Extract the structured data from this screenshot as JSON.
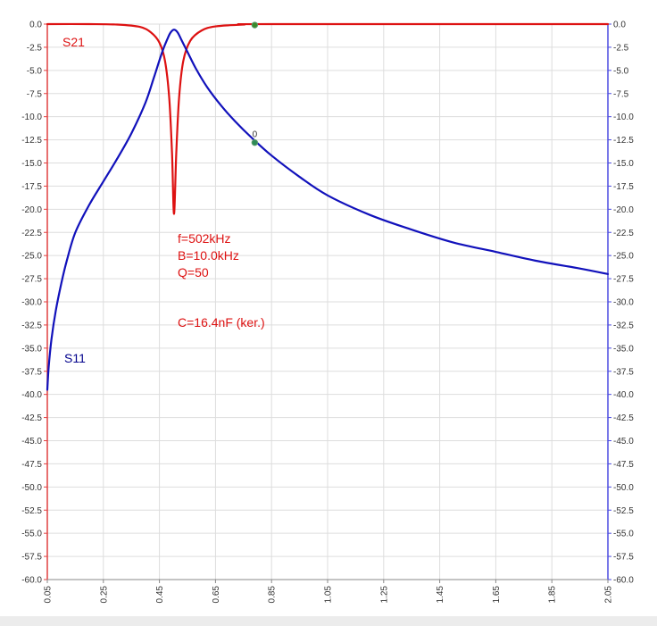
{
  "chart_data": {
    "type": "line",
    "xlim": [
      0.05,
      2.05
    ],
    "ylim_left": [
      -60,
      0
    ],
    "ylim_right": [
      -60,
      0
    ],
    "x_ticks": [
      "0.05",
      "0.25",
      "0.45",
      "0.65",
      "0.85",
      "1.05",
      "1.25",
      "1.45",
      "1.65",
      "1.85",
      "2.05"
    ],
    "y_ticks": [
      "0.0",
      "-2.5",
      "-5.0",
      "-7.5",
      "-10.0",
      "-12.5",
      "-15.0",
      "-17.5",
      "-20.0",
      "-22.5",
      "-25.0",
      "-27.5",
      "-30.0",
      "-32.5",
      "-35.0",
      "-37.5",
      "-40.0",
      "-42.5",
      "-45.0",
      "-47.5",
      "-50.0",
      "-52.5",
      "-55.0",
      "-57.5",
      "-60.0"
    ],
    "grid": true,
    "series": [
      {
        "name": "S21",
        "color": "#dd1111",
        "axis": "left",
        "points": [
          [
            0.05,
            0
          ],
          [
            0.2,
            0
          ],
          [
            0.3,
            -0.05
          ],
          [
            0.38,
            -0.3
          ],
          [
            0.42,
            -0.9
          ],
          [
            0.45,
            -2.0
          ],
          [
            0.47,
            -4.0
          ],
          [
            0.485,
            -8.0
          ],
          [
            0.495,
            -14.0
          ],
          [
            0.502,
            -20.5
          ],
          [
            0.51,
            -14.0
          ],
          [
            0.52,
            -8.0
          ],
          [
            0.535,
            -4.0
          ],
          [
            0.56,
            -1.8
          ],
          [
            0.6,
            -0.7
          ],
          [
            0.65,
            -0.25
          ],
          [
            0.75,
            -0.05
          ],
          [
            0.85,
            0
          ],
          [
            2.05,
            0
          ]
        ]
      },
      {
        "name": "S11",
        "color": "#1111bb",
        "axis": "right",
        "points": [
          [
            0.05,
            -39.5
          ],
          [
            0.055,
            -37
          ],
          [
            0.065,
            -34
          ],
          [
            0.08,
            -31
          ],
          [
            0.1,
            -28
          ],
          [
            0.12,
            -25.5
          ],
          [
            0.15,
            -22.5
          ],
          [
            0.2,
            -19.5
          ],
          [
            0.25,
            -17
          ],
          [
            0.3,
            -14.5
          ],
          [
            0.35,
            -11.8
          ],
          [
            0.4,
            -8.5
          ],
          [
            0.43,
            -5.8
          ],
          [
            0.46,
            -3.0
          ],
          [
            0.48,
            -1.5
          ],
          [
            0.49,
            -0.9
          ],
          [
            0.502,
            -0.6
          ],
          [
            0.515,
            -0.9
          ],
          [
            0.53,
            -1.8
          ],
          [
            0.55,
            -3.0
          ],
          [
            0.58,
            -4.8
          ],
          [
            0.62,
            -6.8
          ],
          [
            0.67,
            -8.8
          ],
          [
            0.72,
            -10.5
          ],
          [
            0.78,
            -12.3
          ],
          [
            0.85,
            -14.2
          ],
          [
            0.95,
            -16.5
          ],
          [
            1.05,
            -18.5
          ],
          [
            1.2,
            -20.6
          ],
          [
            1.35,
            -22.2
          ],
          [
            1.5,
            -23.6
          ],
          [
            1.65,
            -24.6
          ],
          [
            1.8,
            -25.6
          ],
          [
            1.95,
            -26.4
          ],
          [
            2.05,
            -27.0
          ]
        ]
      }
    ],
    "markers": [
      {
        "x": 0.79,
        "y": -12.8,
        "label": "0",
        "color": "#2e8b57"
      },
      {
        "x": 0.79,
        "y": -0.1,
        "label": "",
        "color": "#3a8a2a"
      }
    ],
    "series_labels": [
      {
        "text": "S21",
        "color": "#dd1111"
      },
      {
        "text": "S11",
        "color": "#00008b"
      }
    ],
    "annotations": {
      "color": "#dd1111",
      "lines": [
        "f=502kHz",
        "B=10.0kHz",
        "Q=50",
        "",
        "C=16.4nF (ker.)"
      ]
    },
    "colors": {
      "left_axis": "#e04040",
      "right_axis": "#4a4ae0",
      "grid": "#dddddd",
      "footer": "#ececec"
    }
  }
}
